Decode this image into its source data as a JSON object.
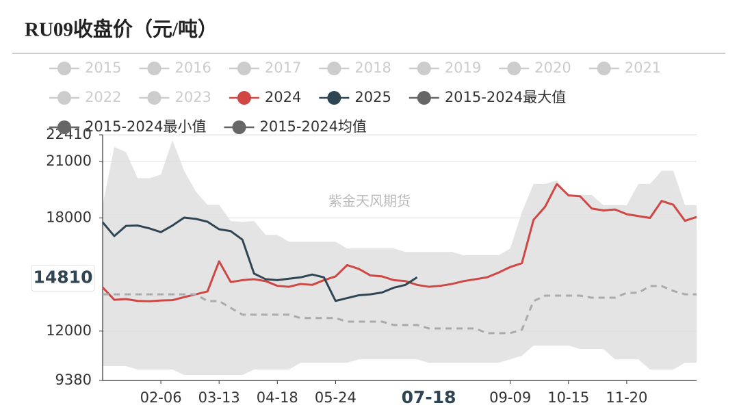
{
  "chart_data": {
    "type": "line",
    "title": "RU09收盘价（元/吨）",
    "watermark": "紫金天风期货",
    "y_pointer": 14810,
    "x_pointer_index": 28,
    "ylim": [
      9380,
      22410
    ],
    "yticks": [
      9380,
      12000,
      18000,
      21000,
      22410
    ],
    "grid": true,
    "categories": [
      null,
      null,
      null,
      null,
      null,
      "02-06",
      null,
      null,
      null,
      null,
      "03-13",
      null,
      null,
      null,
      null,
      "04-18",
      null,
      null,
      null,
      null,
      "05-24",
      null,
      null,
      null,
      null,
      null,
      null,
      null,
      "07-18",
      null,
      null,
      null,
      null,
      null,
      null,
      "09-09",
      null,
      null,
      null,
      null,
      "10-15",
      null,
      null,
      null,
      null,
      "11-20",
      null,
      null,
      null,
      null,
      null,
      null
    ],
    "series": [
      {
        "name": "2015",
        "color": "#cccccc",
        "hidden": true
      },
      {
        "name": "2016",
        "color": "#cccccc",
        "hidden": true
      },
      {
        "name": "2017",
        "color": "#cccccc",
        "hidden": true
      },
      {
        "name": "2018",
        "color": "#cccccc",
        "hidden": true
      },
      {
        "name": "2019",
        "color": "#cccccc",
        "hidden": true
      },
      {
        "name": "2020",
        "color": "#cccccc",
        "hidden": true
      },
      {
        "name": "2021",
        "color": "#cccccc",
        "hidden": true
      },
      {
        "name": "2022",
        "color": "#cccccc",
        "hidden": true
      },
      {
        "name": "2023",
        "color": "#cccccc",
        "hidden": true
      },
      {
        "name": "2024",
        "color": "#cf4643",
        "values": [
          14320,
          13660,
          13700,
          13600,
          13580,
          13620,
          13640,
          13800,
          13950,
          14100,
          15700,
          14600,
          14700,
          14750,
          14650,
          14400,
          14350,
          14500,
          14450,
          14700,
          14900,
          15500,
          15300,
          14950,
          14900,
          14700,
          14650,
          14450,
          14350,
          14400,
          14500,
          14650,
          14750,
          14850,
          15100,
          15400,
          15600,
          17900,
          18600,
          19800,
          19200,
          19150,
          18500,
          18400,
          18450,
          18200,
          18100,
          18000,
          18900,
          18700,
          17850,
          18050
        ]
      },
      {
        "name": "2025",
        "color": "#2f4554",
        "values": [
          17770,
          17040,
          17580,
          17600,
          17450,
          17250,
          17600,
          18020,
          17950,
          17800,
          17400,
          17300,
          16850,
          15050,
          14750,
          14700,
          14780,
          14850,
          15000,
          14850,
          13600,
          13750,
          13900,
          13950,
          14050,
          14300,
          14450,
          14850,
          null,
          null,
          null,
          null,
          null,
          null,
          null,
          null,
          null,
          null,
          null,
          null,
          null,
          null,
          null,
          null,
          null,
          null,
          null,
          null,
          null,
          null,
          null,
          null
        ]
      },
      {
        "name": "2015-2024最大值",
        "color": "#666666",
        "area_color": "#e4e4e4",
        "values": [
          18670,
          21760,
          21500,
          20120,
          20100,
          20300,
          22120,
          20500,
          19400,
          18700,
          18700,
          17830,
          17800,
          17830,
          17100,
          17100,
          16740,
          16740,
          16740,
          16740,
          16740,
          16380,
          16380,
          16380,
          16380,
          16380,
          16200,
          16200,
          16200,
          16200,
          16200,
          16020,
          16020,
          16020,
          16020,
          16380,
          18310,
          19800,
          19800,
          20000,
          19220,
          19220,
          19220,
          18670,
          18670,
          18670,
          19800,
          19800,
          20500,
          20500,
          18670,
          18670
        ]
      },
      {
        "name": "2015-2024最小值",
        "color": "#666666",
        "area_color": "#ffffff",
        "values": [
          10140,
          10140,
          10140,
          9960,
          9960,
          9960,
          9960,
          9670,
          9670,
          9670,
          9670,
          9670,
          9670,
          9960,
          9960,
          9960,
          9960,
          10320,
          10320,
          10320,
          10320,
          10320,
          10500,
          10500,
          10500,
          10500,
          10500,
          10500,
          10320,
          10320,
          10320,
          10320,
          10320,
          10320,
          10320,
          10500,
          10690,
          11230,
          11230,
          11230,
          11230,
          11050,
          11050,
          11050,
          10500,
          10500,
          10500,
          9960,
          9960,
          9960,
          10320,
          10320
        ]
      },
      {
        "name": "2015-2024均值",
        "color": "#666666",
        "line_color": "#aaaaaa",
        "dash": true,
        "values": [
          13950,
          13950,
          13950,
          13950,
          13950,
          13950,
          13950,
          13950,
          13950,
          13590,
          13590,
          13230,
          12870,
          12870,
          12870,
          12870,
          12870,
          12690,
          12690,
          12690,
          12690,
          12500,
          12500,
          12500,
          12500,
          12320,
          12320,
          12320,
          12140,
          12140,
          12140,
          12140,
          12140,
          11890,
          11890,
          11890,
          12070,
          13590,
          13880,
          13880,
          13880,
          13880,
          13770,
          13770,
          13770,
          14030,
          14030,
          14390,
          14390,
          14130,
          13950,
          13950
        ]
      }
    ]
  }
}
